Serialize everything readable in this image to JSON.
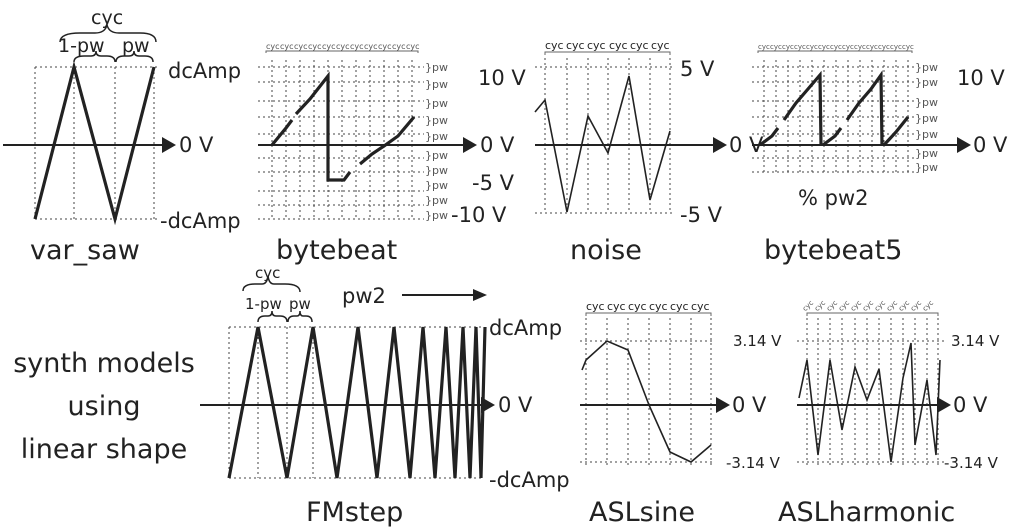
{
  "panels": {
    "var_saw": {
      "title": "var_saw",
      "top_label": "cyc",
      "left_seg": "1-pw",
      "right_seg": "pw",
      "dc_top": "dcAmp",
      "dc_bottom": "-dcAmp",
      "zero": "0 V"
    },
    "bytebeat": {
      "title": "bytebeat",
      "tick_label": "cyc",
      "pw_label": "}pw",
      "y_labels": [
        "10 V",
        "0 V",
        "-5 V",
        "-10 V"
      ]
    },
    "noise": {
      "title": "noise",
      "tick_label": "cyc",
      "y_labels": [
        "5 V",
        "0 V",
        "-5 V"
      ]
    },
    "bytebeat5": {
      "title": "bytebeat5",
      "tick_label": "cyc",
      "pw_label": "}pw",
      "note": "% pw2",
      "y_labels": [
        "10 V",
        "0 V"
      ]
    },
    "FMstep": {
      "title": "FMstep",
      "top_label": "cyc",
      "left_seg": "1-pw",
      "right_seg": "pw",
      "pw2": "pw2",
      "dc_top": "dcAmp",
      "dc_bottom": "-dcAmp",
      "zero": "0 V"
    },
    "ASLsine": {
      "title": "ASLsine",
      "tick_label": "cyc",
      "y_labels": [
        "3.14 V",
        "0 V",
        "-3.14 V"
      ]
    },
    "ASLharmonic": {
      "title": "ASLharmonic",
      "tick_label": "cyc",
      "y_labels": [
        "3.14 V",
        "0 V",
        "-3.14 V"
      ]
    }
  },
  "caption": {
    "line1": "synth models",
    "line2": "using",
    "line3": "linear shape"
  }
}
